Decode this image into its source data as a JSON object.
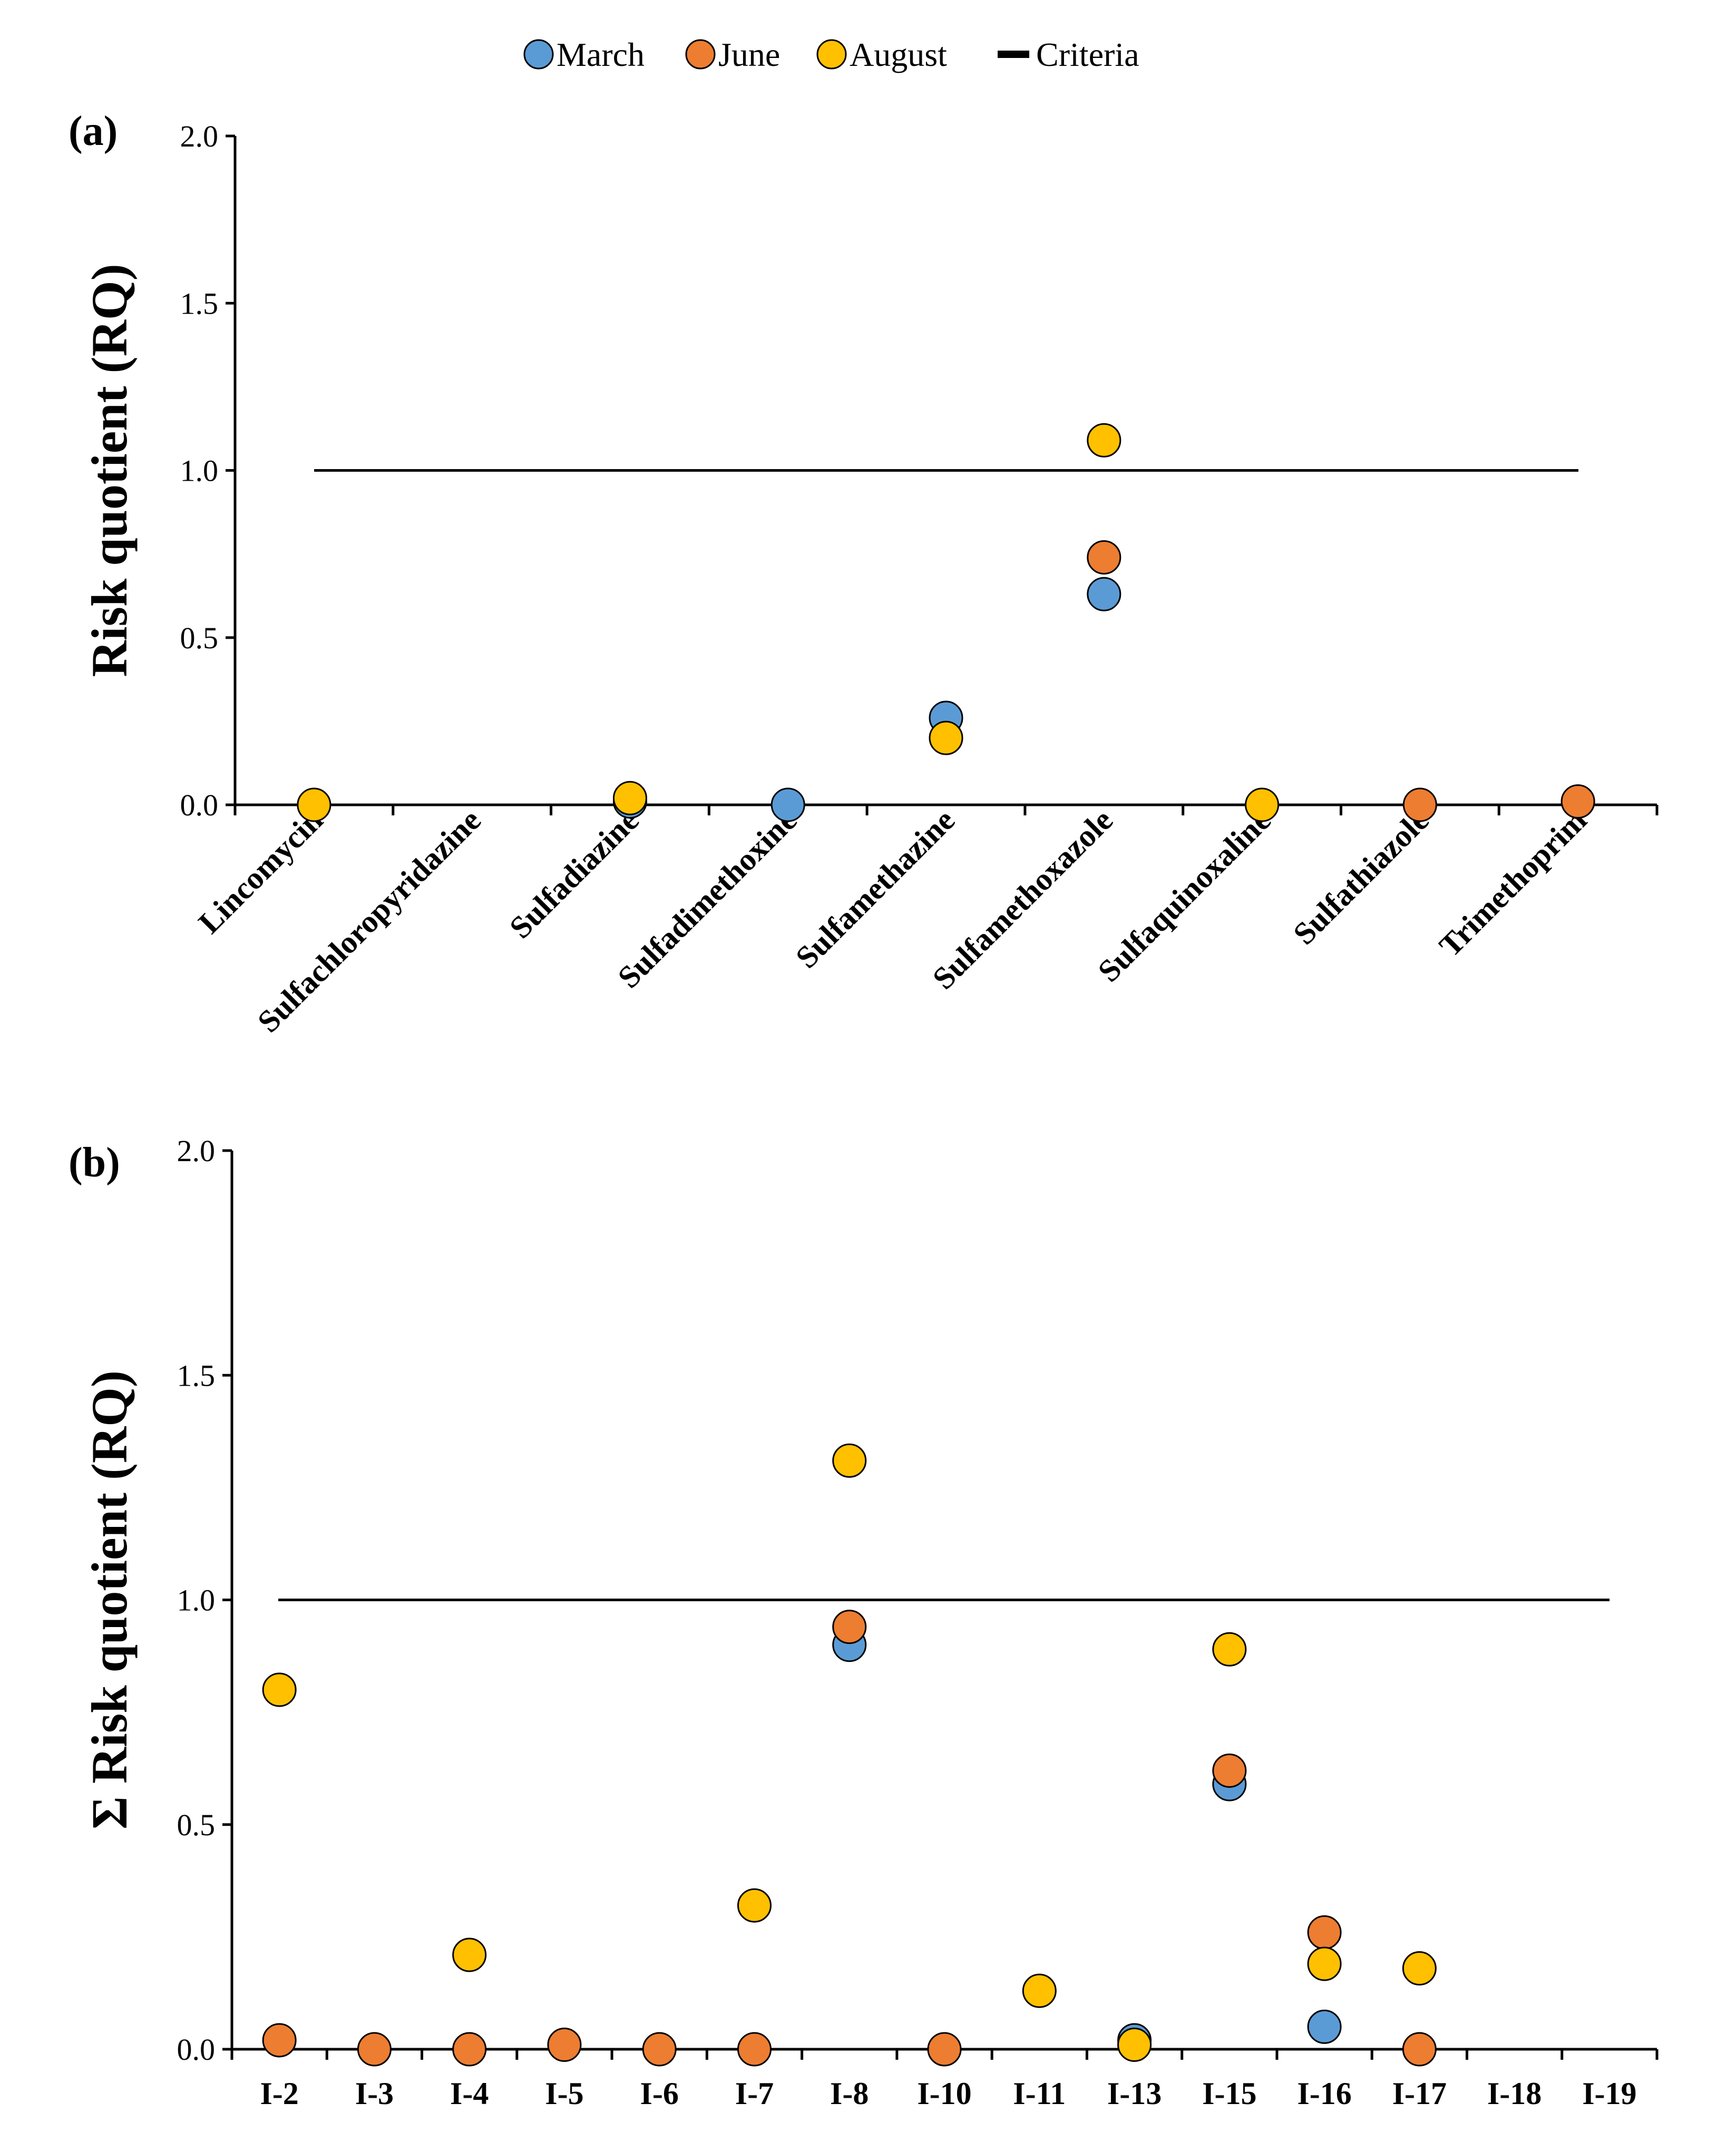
{
  "legend": {
    "items": [
      {
        "label": "March",
        "color": "#5B9BD5",
        "shape": "circle"
      },
      {
        "label": "June",
        "color": "#ED7D31",
        "shape": "circle"
      },
      {
        "label": "August",
        "color": "#FFC000",
        "shape": "circle"
      },
      {
        "label": "Criteria",
        "color": "#000000",
        "shape": "line"
      }
    ]
  },
  "chart_data": [
    {
      "type": "scatter",
      "panel_label": "(a)",
      "ylabel": "Risk quotient (RQ)",
      "ylim": [
        0,
        2.0
      ],
      "yticks": [
        "0.0",
        "0.5",
        "1.0",
        "1.5",
        "2.0"
      ],
      "criteria": 1.0,
      "categories": [
        "Lincomycin",
        "Sulfachloropyridazine",
        "Sulfadiazine",
        "Sulfadimethoxine",
        "Sulfamethazine",
        "Sulfamethoxazole",
        "Sulfaquinoxaline",
        "Sulfathiazole",
        "Trimethoprim"
      ],
      "series": [
        {
          "name": "March",
          "color": "#5B9BD5",
          "values": [
            null,
            null,
            0.01,
            0.0,
            0.26,
            0.63,
            null,
            null,
            null
          ]
        },
        {
          "name": "June",
          "color": "#ED7D31",
          "values": [
            null,
            null,
            null,
            null,
            null,
            0.74,
            null,
            0.0,
            0.01
          ]
        },
        {
          "name": "August",
          "color": "#FFC000",
          "values": [
            0.0,
            null,
            0.02,
            null,
            0.2,
            1.09,
            0.0,
            null,
            null
          ]
        }
      ]
    },
    {
      "type": "scatter",
      "panel_label": "(b)",
      "ylabel": "Σ Risk quotient (RQ)",
      "ylim": [
        0,
        2.0
      ],
      "yticks": [
        "0.0",
        "0.5",
        "1.0",
        "1.5",
        "2.0"
      ],
      "criteria": 1.0,
      "categories": [
        "I-2",
        "I-3",
        "I-4",
        "I-5",
        "I-6",
        "I-7",
        "I-8",
        "I-10",
        "I-11",
        "I-13",
        "I-15",
        "I-16",
        "I-17",
        "I-18",
        "I-19"
      ],
      "series": [
        {
          "name": "March",
          "color": "#5B9BD5",
          "values": [
            null,
            null,
            null,
            null,
            null,
            null,
            0.9,
            null,
            null,
            0.02,
            0.59,
            0.05,
            null,
            null,
            null
          ]
        },
        {
          "name": "June",
          "color": "#ED7D31",
          "values": [
            0.02,
            0.0,
            0.0,
            0.01,
            0.0,
            0.0,
            0.94,
            0.0,
            null,
            null,
            0.62,
            0.26,
            0.0,
            null,
            null
          ]
        },
        {
          "name": "August",
          "color": "#FFC000",
          "values": [
            0.8,
            null,
            0.21,
            null,
            null,
            0.32,
            1.31,
            null,
            0.13,
            0.01,
            0.89,
            0.19,
            0.18,
            null,
            null
          ]
        }
      ]
    }
  ]
}
